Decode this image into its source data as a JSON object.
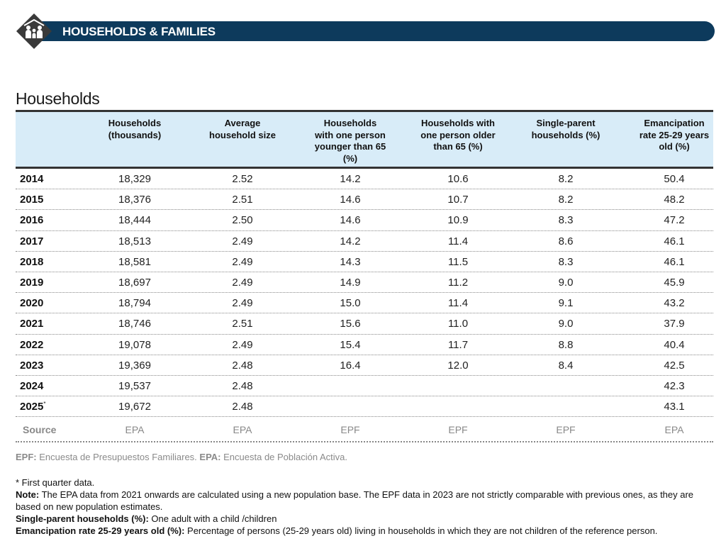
{
  "banner": {
    "title": "HOUSEHOLDS & FAMILIES",
    "icon": "family-icon"
  },
  "section_title": "Households",
  "table": {
    "columns": [
      [
        "Households",
        "(thousands)"
      ],
      [
        "Average",
        "household size"
      ],
      [
        "Households",
        "with one person",
        "younger than 65",
        "(%)"
      ],
      [
        "Households with",
        "one person older",
        "than 65 (%)"
      ],
      [
        "Single-parent",
        "households (%)"
      ],
      [
        "Emancipation",
        "rate 25-29 years",
        "old (%)"
      ]
    ],
    "rows": [
      {
        "year": "2014",
        "sup": "",
        "values": [
          "18,329",
          "2.52",
          "14.2",
          "10.6",
          "8.2",
          "50.4"
        ]
      },
      {
        "year": "2015",
        "sup": "",
        "values": [
          "18,376",
          "2.51",
          "14.6",
          "10.7",
          "8.2",
          "48.2"
        ]
      },
      {
        "year": "2016",
        "sup": "",
        "values": [
          "18,444",
          "2.50",
          "14.6",
          "10.9",
          "8.3",
          "47.2"
        ]
      },
      {
        "year": "2017",
        "sup": "",
        "values": [
          "18,513",
          "2.49",
          "14.2",
          "11.4",
          "8.6",
          "46.1"
        ]
      },
      {
        "year": "2018",
        "sup": "",
        "values": [
          "18,581",
          "2.49",
          "14.3",
          "11.5",
          "8.3",
          "46.1"
        ]
      },
      {
        "year": "2019",
        "sup": "",
        "values": [
          "18,697",
          "2.49",
          "14.9",
          "11.2",
          "9.0",
          "45.9"
        ]
      },
      {
        "year": "2020",
        "sup": "",
        "values": [
          "18,794",
          "2.49",
          "15.0",
          "11.4",
          "9.1",
          "43.2"
        ]
      },
      {
        "year": "2021",
        "sup": "",
        "values": [
          "18,746",
          "2.51",
          "15.6",
          "11.0",
          "9.0",
          "37.9"
        ]
      },
      {
        "year": "2022",
        "sup": "",
        "values": [
          "19,078",
          "2.49",
          "15.4",
          "11.7",
          "8.8",
          "40.4"
        ]
      },
      {
        "year": "2023",
        "sup": "",
        "values": [
          "19,369",
          "2.48",
          "16.4",
          "12.0",
          "8.4",
          "42.5"
        ]
      },
      {
        "year": "2024",
        "sup": "",
        "values": [
          "19,537",
          "2.48",
          "",
          "",
          "",
          "42.3"
        ]
      },
      {
        "year": "2025",
        "sup": "*",
        "values": [
          "19,672",
          "2.48",
          "",
          "",
          "",
          "43.1"
        ]
      }
    ],
    "source": {
      "label": "Source",
      "values": [
        "EPA",
        "EPA",
        "EPF",
        "EPF",
        "EPF",
        "EPA"
      ]
    }
  },
  "abbreviations": {
    "epf_label": "EPF:",
    "epf_text": " Encuesta de Presupuestos Familiares. ",
    "epa_label": "EPA:",
    "epa_text": " Encuesta de Población Activa."
  },
  "notes": {
    "first_quarter": "* First quarter data.",
    "note_label": "Note:",
    "note_text": " The EPA data from 2021 onwards are calculated using a new population base. The EPF data in 2023 are not strictly comparable with previous ones, as they are based on new population estimates.",
    "single_label": "Single-parent households (%):",
    "single_text": " One adult with a child /children",
    "eman_label": "Emancipation rate 25-29 years old (%):",
    "eman_text": " Percentage of persons (25-29 years old) living in households in which they are not children of the reference person."
  },
  "colors": {
    "banner": "#0d3a5c",
    "header_bg": "#d8ecf8",
    "muted": "#8a8a8a"
  }
}
